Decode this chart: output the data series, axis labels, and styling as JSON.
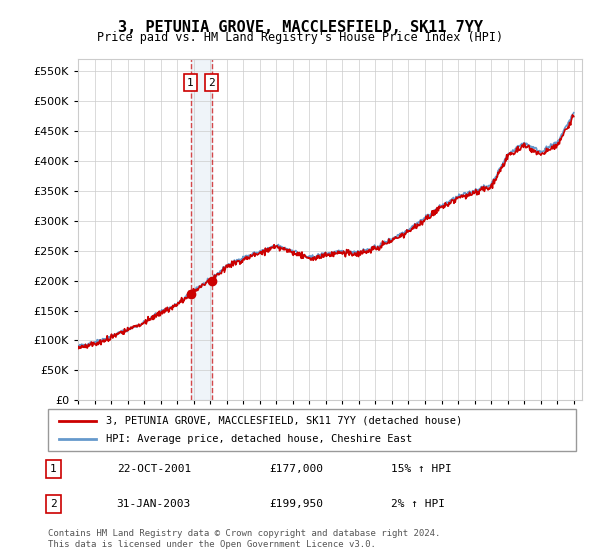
{
  "title": "3, PETUNIA GROVE, MACCLESFIELD, SK11 7YY",
  "subtitle": "Price paid vs. HM Land Registry's House Price Index (HPI)",
  "ylim": [
    0,
    570000
  ],
  "yticks": [
    0,
    50000,
    100000,
    150000,
    200000,
    250000,
    300000,
    350000,
    400000,
    450000,
    500000,
    550000
  ],
  "sale1_date": 2001.81,
  "sale1_price": 177000,
  "sale2_date": 2003.08,
  "sale2_price": 199950,
  "legend_line1": "3, PETUNIA GROVE, MACCLESFIELD, SK11 7YY (detached house)",
  "legend_line2": "HPI: Average price, detached house, Cheshire East",
  "table_rows": [
    {
      "num": "1",
      "date": "22-OCT-2001",
      "price": "£177,000",
      "hpi": "15% ↑ HPI"
    },
    {
      "num": "2",
      "date": "31-JAN-2003",
      "price": "£199,950",
      "hpi": "2% ↑ HPI"
    }
  ],
  "footnote": "Contains HM Land Registry data © Crown copyright and database right 2024.\nThis data is licensed under the Open Government Licence v3.0.",
  "hpi_color": "#6699cc",
  "sale_color": "#cc0000",
  "vline_color": "#cc0000",
  "grid_color": "#cccccc",
  "background_color": "#ffffff"
}
